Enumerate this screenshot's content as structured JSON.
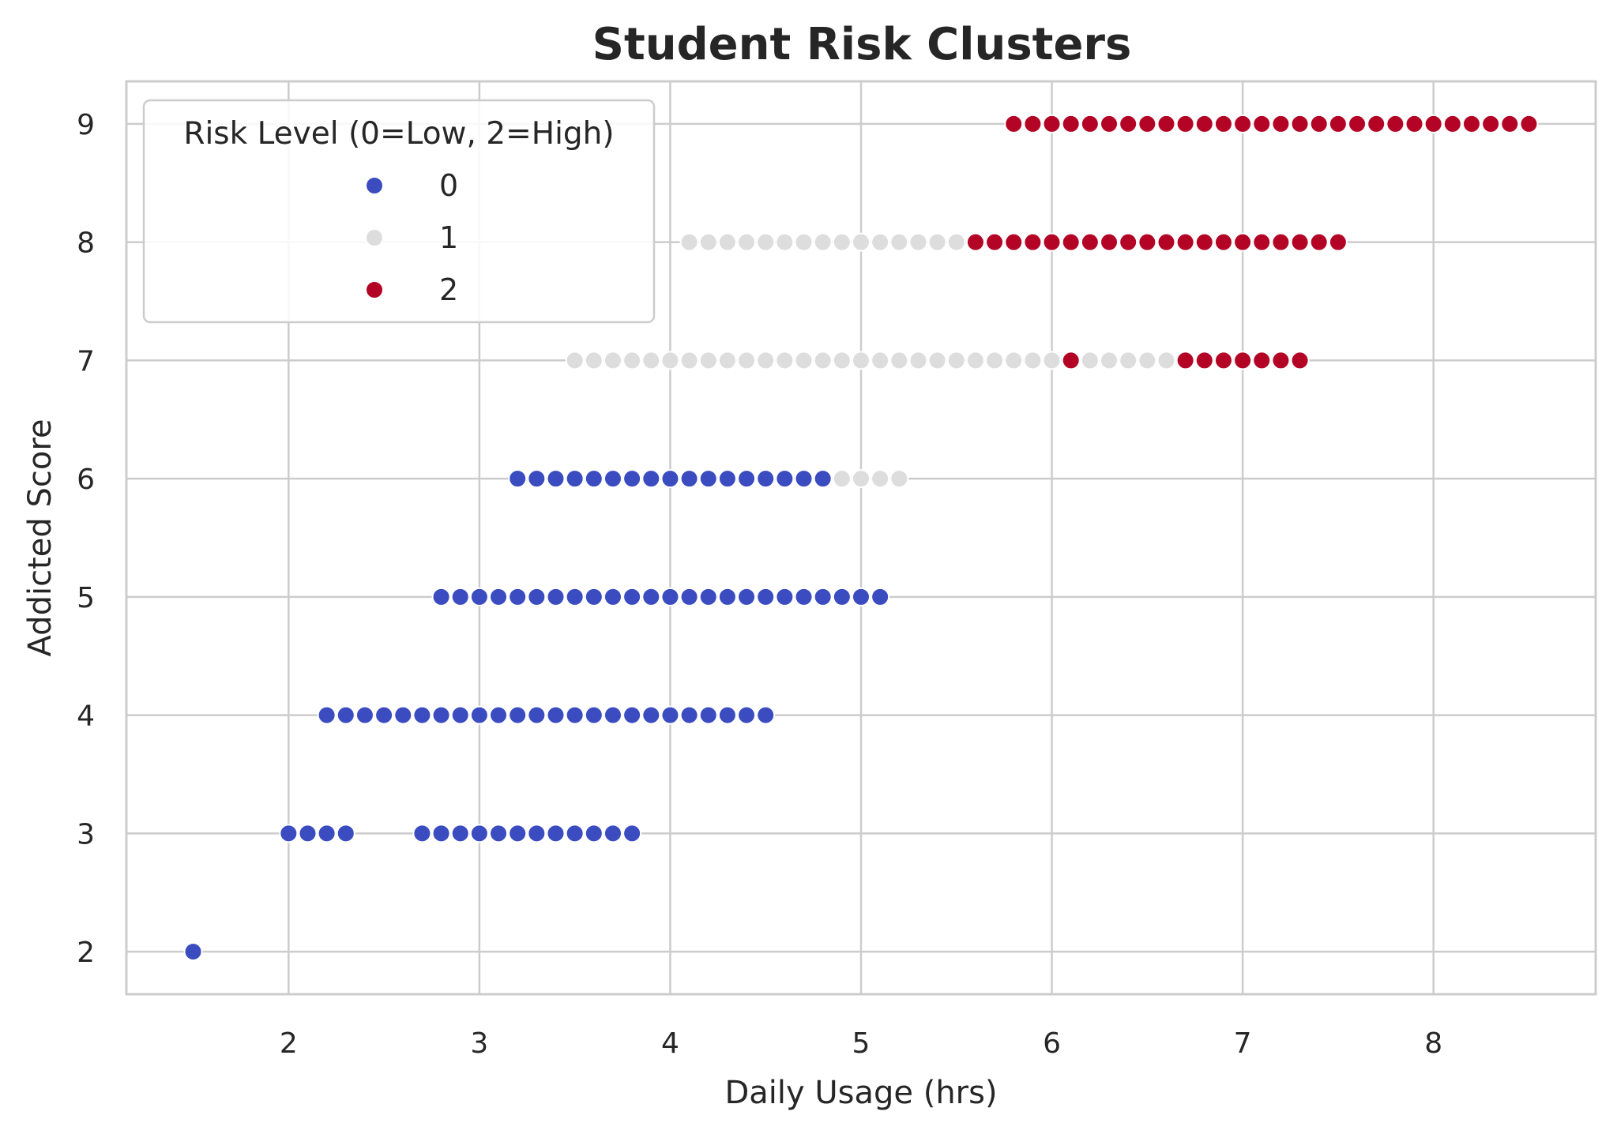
{
  "chart_data": {
    "type": "scatter",
    "title": "Student Risk Clusters",
    "xlabel": "Daily Usage (hrs)",
    "ylabel": "Addicted Score",
    "xlim": [
      1.15,
      8.85
    ],
    "ylim": [
      1.64,
      9.36
    ],
    "xticks": [
      2,
      3,
      4,
      5,
      6,
      7,
      8
    ],
    "yticks": [
      2,
      3,
      4,
      5,
      6,
      7,
      8,
      9
    ],
    "grid": true,
    "legend": {
      "title": "Risk Level (0=Low, 2=High)",
      "placement": "top-left",
      "entries": [
        {
          "label": "0",
          "color": "#3b4cc0"
        },
        {
          "label": "1",
          "color": "#dddddd"
        },
        {
          "label": "2",
          "color": "#b40426"
        }
      ]
    },
    "series": [
      {
        "name": "0",
        "color": "#3b4cc0",
        "segments": [
          {
            "y": 2,
            "x_start": 1.5,
            "x_end": 1.5,
            "step": 0.1
          },
          {
            "y": 3,
            "x_start": 2.0,
            "x_end": 2.3,
            "step": 0.1
          },
          {
            "y": 3,
            "x_start": 2.7,
            "x_end": 3.8,
            "step": 0.1
          },
          {
            "y": 4,
            "x_start": 2.2,
            "x_end": 4.5,
            "step": 0.1
          },
          {
            "y": 5,
            "x_start": 2.8,
            "x_end": 5.1,
            "step": 0.1
          },
          {
            "y": 6,
            "x_start": 3.2,
            "x_end": 4.8,
            "step": 0.1
          }
        ]
      },
      {
        "name": "1",
        "color": "#dddddd",
        "segments": [
          {
            "y": 6,
            "x_start": 4.9,
            "x_end": 5.2,
            "step": 0.1
          },
          {
            "y": 7,
            "x_start": 3.5,
            "x_end": 6.0,
            "step": 0.1
          },
          {
            "y": 7,
            "x_start": 6.2,
            "x_end": 6.6,
            "step": 0.1
          },
          {
            "y": 8,
            "x_start": 4.1,
            "x_end": 5.5,
            "step": 0.1
          }
        ]
      },
      {
        "name": "2",
        "color": "#b40426",
        "segments": [
          {
            "y": 7,
            "x_start": 6.1,
            "x_end": 6.1,
            "step": 0.1
          },
          {
            "y": 7,
            "x_start": 6.7,
            "x_end": 7.3,
            "step": 0.1
          },
          {
            "y": 8,
            "x_start": 5.6,
            "x_end": 7.5,
            "step": 0.1
          },
          {
            "y": 9,
            "x_start": 5.8,
            "x_end": 8.5,
            "step": 0.1
          }
        ]
      }
    ]
  }
}
